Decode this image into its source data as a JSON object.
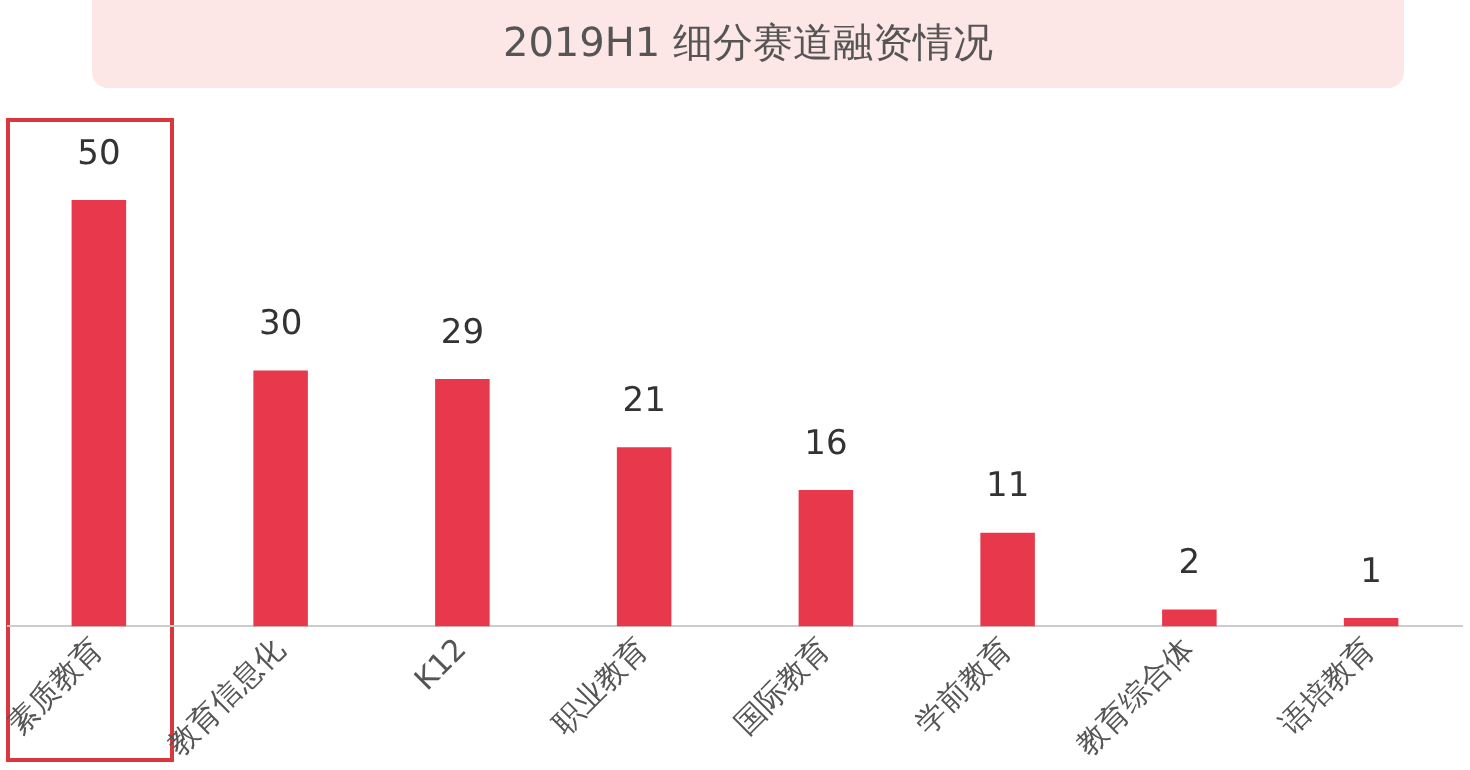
{
  "chart_data": {
    "type": "bar",
    "title": "2019H1 细分赛道融资情况",
    "categories": [
      "素质教育",
      "教育信息化",
      "K12",
      "职业教育",
      "国际教育",
      "学前教育",
      "教育综合体",
      "语培教育"
    ],
    "values": [
      50,
      30,
      29,
      21,
      16,
      11,
      2,
      1
    ],
    "color": "#e8384b",
    "data_labels": true,
    "grid": false,
    "legend": false
  }
}
